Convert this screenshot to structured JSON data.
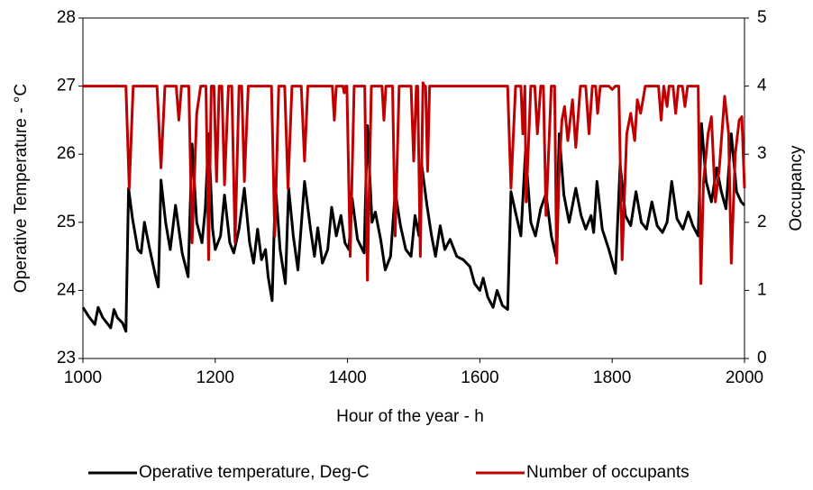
{
  "chart_data": {
    "type": "line",
    "xlabel": "Hour of the year - h",
    "ylabel": "Operative Temperature - °C",
    "y2label": "Occupancy",
    "xlim": [
      1000,
      2000
    ],
    "xticks": [
      1000,
      1200,
      1400,
      1600,
      1800,
      2000
    ],
    "ylim": [
      23,
      28
    ],
    "yticks": [
      23,
      24,
      25,
      26,
      27,
      28
    ],
    "y2lim": [
      0,
      5
    ],
    "y2ticks": [
      0,
      1,
      2,
      3,
      4,
      5
    ],
    "grid": false,
    "legend": "bottom",
    "series": [
      {
        "name": "Operative temperature, Deg-C",
        "color": "#000000",
        "x": [
          1000,
          1010,
          1018,
          1023,
          1030,
          1042,
          1047,
          1052,
          1060,
          1065,
          1069,
          1075,
          1083,
          1088,
          1093,
          1100,
          1110,
          1114,
          1118,
          1125,
          1132,
          1140,
          1150,
          1159,
          1165,
          1172,
          1180,
          1185,
          1190,
          1196,
          1200,
          1208,
          1214,
          1222,
          1228,
          1236,
          1244,
          1252,
          1258,
          1264,
          1270,
          1276,
          1280,
          1286,
          1291,
          1298,
          1306,
          1311,
          1318,
          1325,
          1335,
          1344,
          1350,
          1355,
          1362,
          1370,
          1376,
          1383,
          1390,
          1396,
          1402,
          1407,
          1415,
          1425,
          1430,
          1437,
          1442,
          1450,
          1457,
          1465,
          1472,
          1480,
          1488,
          1496,
          1502,
          1508,
          1512,
          1520,
          1527,
          1533,
          1540,
          1547,
          1555,
          1565,
          1575,
          1585,
          1592,
          1600,
          1605,
          1612,
          1620,
          1626,
          1634,
          1642,
          1647,
          1655,
          1662,
          1669,
          1677,
          1684,
          1692,
          1700,
          1708,
          1715,
          1720,
          1727,
          1735,
          1745,
          1753,
          1760,
          1768,
          1772,
          1777,
          1785,
          1795,
          1805,
          1812,
          1820,
          1828,
          1836,
          1844,
          1852,
          1860,
          1868,
          1876,
          1883,
          1890,
          1898,
          1907,
          1915,
          1922,
          1930,
          1935,
          1942,
          1950,
          1958,
          1965,
          1972,
          1980,
          1988,
          1995,
          2000
        ],
        "values": [
          23.75,
          23.6,
          23.5,
          23.75,
          23.6,
          23.45,
          23.72,
          23.6,
          23.52,
          23.4,
          25.5,
          25.05,
          24.6,
          24.55,
          25.0,
          24.65,
          24.2,
          24.05,
          25.62,
          25.0,
          24.6,
          25.25,
          24.55,
          24.2,
          26.15,
          25.0,
          24.7,
          25.2,
          26.3,
          24.9,
          24.6,
          24.8,
          25.4,
          24.7,
          24.55,
          24.9,
          25.5,
          24.7,
          24.4,
          24.9,
          24.45,
          24.6,
          24.2,
          23.85,
          25.55,
          24.6,
          24.1,
          25.5,
          24.8,
          24.3,
          25.6,
          24.9,
          24.5,
          24.92,
          24.4,
          24.6,
          25.22,
          24.8,
          25.1,
          24.7,
          24.6,
          25.35,
          24.75,
          24.55,
          26.42,
          25.0,
          25.15,
          24.75,
          24.3,
          24.5,
          25.45,
          24.95,
          24.6,
          24.5,
          25.1,
          24.8,
          25.85,
          25.25,
          24.8,
          24.5,
          24.95,
          24.6,
          24.75,
          24.5,
          24.45,
          24.35,
          24.1,
          24.0,
          24.18,
          23.9,
          23.75,
          24.0,
          23.78,
          23.72,
          25.45,
          25.1,
          24.8,
          26.05,
          25.0,
          24.8,
          25.2,
          25.42,
          24.8,
          24.5,
          26.3,
          25.4,
          25.0,
          25.5,
          25.1,
          24.9,
          25.1,
          24.85,
          25.6,
          24.9,
          24.6,
          24.25,
          25.85,
          25.1,
          24.95,
          25.45,
          25.0,
          24.9,
          25.3,
          24.95,
          24.85,
          25.0,
          25.6,
          25.05,
          24.9,
          25.15,
          24.95,
          24.8,
          26.45,
          25.6,
          25.3,
          25.8,
          25.45,
          25.2,
          26.3,
          25.45,
          25.3,
          25.25
        ]
      },
      {
        "name": "Number of occupants",
        "color": "#c00000",
        "axis": "y2",
        "x": [
          1000,
          1065,
          1070,
          1076,
          1112,
          1118,
          1124,
          1141,
          1145,
          1149,
          1160,
          1165,
          1172,
          1178,
          1186,
          1190,
          1194,
          1198,
          1202,
          1206,
          1210,
          1214,
          1220,
          1225,
          1230,
          1236,
          1240,
          1244,
          1250,
          1285,
          1290,
          1296,
          1305,
          1310,
          1316,
          1330,
          1335,
          1340,
          1377,
          1380,
          1383,
          1393,
          1395,
          1397,
          1399,
          1404,
          1410,
          1426,
          1430,
          1436,
          1452,
          1455,
          1458,
          1468,
          1472,
          1478,
          1496,
          1500,
          1504,
          1506,
          1510,
          1514,
          1516,
          1518,
          1521,
          1524,
          1642,
          1647,
          1654,
          1662,
          1665,
          1668,
          1670,
          1677,
          1683,
          1687,
          1692,
          1696,
          1700,
          1708,
          1713,
          1716,
          1720,
          1724,
          1728,
          1733,
          1740,
          1745,
          1752,
          1760,
          1765,
          1770,
          1775,
          1778,
          1782,
          1795,
          1800,
          1805,
          1810,
          1815,
          1822,
          1828,
          1834,
          1838,
          1843,
          1850,
          1870,
          1874,
          1878,
          1883,
          1886,
          1892,
          1896,
          1900,
          1906,
          1910,
          1914,
          1930,
          1934,
          1938,
          1945,
          1950,
          1956,
          1962,
          1970,
          1976,
          1980,
          1986,
          1992,
          1996,
          2000
        ],
        "values": [
          4,
          4,
          2.5,
          4,
          4,
          2.8,
          4,
          4,
          3.5,
          4,
          4,
          1.7,
          3.6,
          4,
          4,
          1.45,
          4,
          4,
          2.6,
          4,
          4,
          2.55,
          4,
          4,
          1.7,
          4,
          4,
          2.6,
          4,
          4,
          1.8,
          4,
          4,
          2.5,
          4,
          4,
          2.9,
          4,
          4,
          3.5,
          4,
          4,
          3.9,
          4,
          4,
          1.5,
          4,
          4,
          1.15,
          4,
          4,
          3.5,
          4,
          4,
          1.8,
          4,
          4,
          2.9,
          4,
          4,
          1.5,
          4.05,
          4,
          4,
          2.75,
          4,
          4,
          2.5,
          4,
          4,
          3.3,
          4,
          2.3,
          4,
          4,
          3.3,
          4,
          4,
          2.1,
          4,
          4,
          1.4,
          2.8,
          3.5,
          3.7,
          3.2,
          3.8,
          3.1,
          4,
          4,
          3.3,
          4,
          4,
          3.6,
          4,
          4,
          3.95,
          4,
          4,
          1.45,
          3.3,
          3.6,
          3.2,
          3.8,
          3.6,
          4,
          4,
          3.5,
          4,
          3.7,
          4,
          4,
          3.6,
          4,
          4,
          3.7,
          4,
          4,
          1.1,
          2.6,
          3.3,
          3.55,
          2.3,
          2.8,
          3.85,
          3.3,
          1.4,
          3.0,
          3.5,
          3.55,
          2.5
        ]
      }
    ]
  }
}
